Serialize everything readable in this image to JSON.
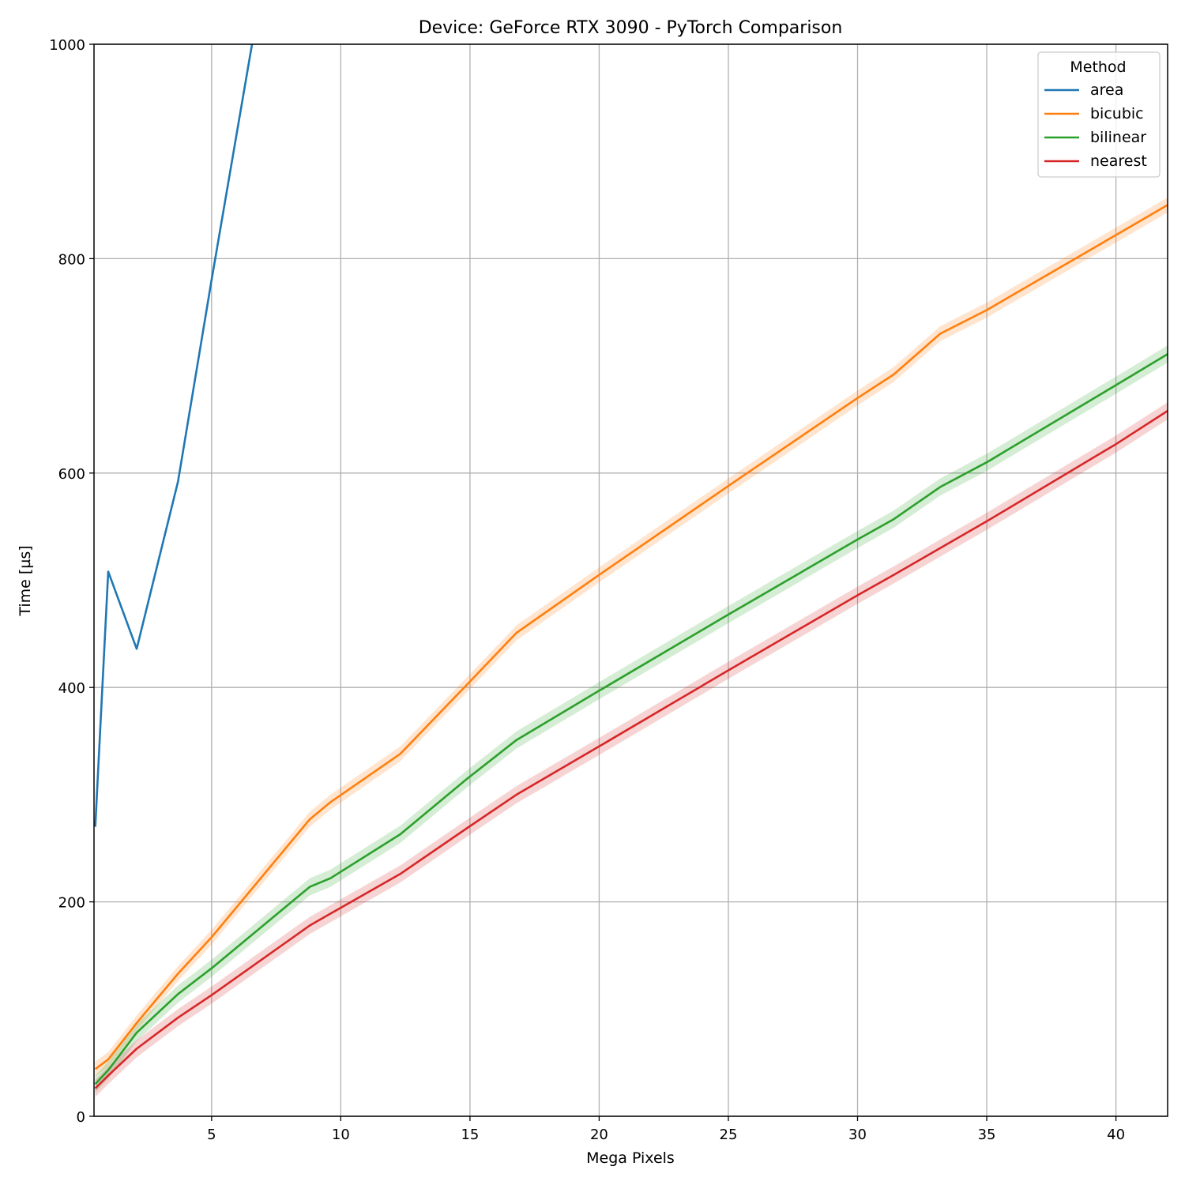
{
  "chart_data": {
    "type": "line",
    "title": "Device: GeForce RTX 3090 - PyTorch Comparison",
    "xlabel": "Mega Pixels",
    "ylabel": "Time [µs]",
    "xlim": [
      0.45,
      42
    ],
    "ylim": [
      0,
      1000
    ],
    "xticks": [
      5,
      10,
      15,
      20,
      25,
      30,
      35,
      40
    ],
    "yticks": [
      0,
      200,
      400,
      600,
      800,
      1000
    ],
    "grid": true,
    "legend": {
      "title": "Method",
      "placement": "top-right"
    },
    "series": [
      {
        "name": "area",
        "color": "#1f77b4",
        "band": 0,
        "points": [
          [
            0.5,
            270
          ],
          [
            1.0,
            508
          ],
          [
            2.1,
            436
          ],
          [
            3.7,
            592
          ],
          [
            5.0,
            780
          ],
          [
            6.6,
            1005
          ]
        ]
      },
      {
        "name": "bicubic",
        "color": "#ff7f0e",
        "band": 7,
        "points": [
          [
            0.5,
            44
          ],
          [
            1.0,
            53
          ],
          [
            2.1,
            87
          ],
          [
            3.7,
            133
          ],
          [
            5.0,
            167
          ],
          [
            8.8,
            277
          ],
          [
            9.6,
            293
          ],
          [
            12.3,
            338
          ],
          [
            14.9,
            403
          ],
          [
            16.8,
            451
          ],
          [
            20.0,
            505
          ],
          [
            25.0,
            588
          ],
          [
            30.0,
            670
          ],
          [
            31.4,
            692
          ],
          [
            33.2,
            730
          ],
          [
            35.0,
            752
          ],
          [
            40.0,
            822
          ],
          [
            42.0,
            850
          ]
        ]
      },
      {
        "name": "bilinear",
        "color": "#2ca02c",
        "band": 8,
        "points": [
          [
            0.5,
            30
          ],
          [
            1.0,
            43
          ],
          [
            2.1,
            78
          ],
          [
            3.7,
            114
          ],
          [
            5.0,
            138
          ],
          [
            8.8,
            214
          ],
          [
            9.6,
            222
          ],
          [
            12.3,
            263
          ],
          [
            14.9,
            315
          ],
          [
            16.8,
            351
          ],
          [
            20.0,
            397
          ],
          [
            25.0,
            468
          ],
          [
            30.0,
            538
          ],
          [
            31.4,
            557
          ],
          [
            33.2,
            587
          ],
          [
            35.0,
            610
          ],
          [
            40.0,
            682
          ],
          [
            42.0,
            711
          ]
        ]
      },
      {
        "name": "nearest",
        "color": "#d62728",
        "band": 8,
        "points": [
          [
            0.5,
            26
          ],
          [
            1.0,
            38
          ],
          [
            2.1,
            63
          ],
          [
            3.7,
            92
          ],
          [
            5.0,
            113
          ],
          [
            8.8,
            178
          ],
          [
            9.6,
            189
          ],
          [
            12.3,
            226
          ],
          [
            14.9,
            269
          ],
          [
            16.8,
            300
          ],
          [
            20.0,
            345
          ],
          [
            25.0,
            416
          ],
          [
            30.0,
            486
          ],
          [
            31.4,
            505
          ],
          [
            33.2,
            530
          ],
          [
            35.0,
            555
          ],
          [
            40.0,
            627
          ],
          [
            42.0,
            658
          ]
        ]
      }
    ]
  }
}
